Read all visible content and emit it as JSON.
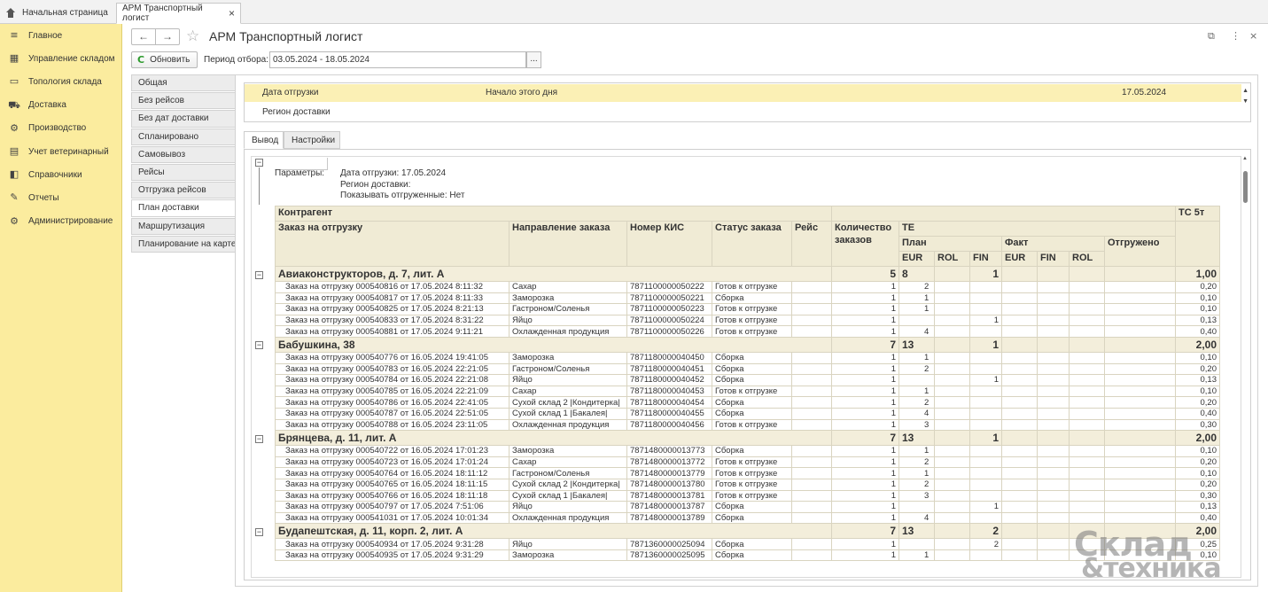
{
  "tabs": {
    "home": "Начальная страница",
    "active": "АРМ Транспортный логист",
    "close": "×"
  },
  "sidebar": [
    {
      "label": "Главное",
      "icon": "≡"
    },
    {
      "label": "Управление складом",
      "icon": "▦"
    },
    {
      "label": "Топология склада",
      "icon": "▭"
    },
    {
      "label": "Доставка",
      "icon": "⛟"
    },
    {
      "label": "Производство",
      "icon": "⚙"
    },
    {
      "label": "Учет ветеринарный",
      "icon": "▤"
    },
    {
      "label": "Справочники",
      "icon": "◧"
    },
    {
      "label": "Отчеты",
      "icon": "✎"
    },
    {
      "label": "Администрирование",
      "icon": "⚙"
    }
  ],
  "header": {
    "back": "←",
    "forward": "→",
    "star": "☆",
    "title": "АРМ Транспортный логист",
    "link": "⧉",
    "more": "⋮",
    "close": "×"
  },
  "toolbar": {
    "refresh_icon": "C",
    "refresh": "Обновить",
    "period_label": "Период отбора:",
    "period_value": "03.05.2024 - 18.05.2024",
    "period_btn": "..."
  },
  "leftnav": [
    "Общая",
    "Без рейсов",
    "Без дат доставки",
    "Спланировано",
    "Самовывоз",
    "Рейсы",
    "Отгрузка рейсов",
    "План доставки",
    "Маршрутизация",
    "Планирование на карте"
  ],
  "filters": [
    {
      "name": "Дата отгрузки",
      "condition": "Начало этого дня",
      "value": "17.05.2024"
    },
    {
      "name": "Регион доставки",
      "condition": "",
      "value": ""
    }
  ],
  "subtabs": [
    "Вывод",
    "Настройки"
  ],
  "params": {
    "label": "Параметры:",
    "lines": [
      "Дата отгрузки: 17.05.2024",
      "Регион доставки:",
      "Показывать отгруженные: Нет"
    ]
  },
  "columns": {
    "contractor": "Контрагент",
    "order": "Заказ на отгрузку",
    "direction": "Направление заказа",
    "kis": "Номер КИС",
    "status": "Статус заказа",
    "trip": "Рейс",
    "count": "Количество заказов",
    "te": "ТЕ",
    "plan": "План",
    "fact": "Факт",
    "shipped": "Отгружено",
    "eur": "EUR",
    "rol": "ROL",
    "fin": "FIN",
    "tc": "ТС 5т"
  },
  "groups": [
    {
      "name": "Авиаконструкторов, д. 7, лит. А",
      "count": "5",
      "eur": "8",
      "fin": "1",
      "tc": "1,00",
      "rows": [
        {
          "order": "Заказ на отгрузку 000540816 от 17.05.2024 8:11:32",
          "dir": "Сахар",
          "kis": "7871100000050222",
          "status": "Готов к отгрузке",
          "count": "1",
          "eur": "2",
          "fin": "",
          "tc": "0,20"
        },
        {
          "order": "Заказ на отгрузку 000540817 от 17.05.2024 8:11:33",
          "dir": "Заморозка",
          "kis": "7871100000050221",
          "status": "Сборка",
          "count": "1",
          "eur": "1",
          "fin": "",
          "tc": "0,10"
        },
        {
          "order": "Заказ на отгрузку 000540825 от 17.05.2024 8:21:13",
          "dir": "Гастроном/Соленья",
          "kis": "7871100000050223",
          "status": "Готов к отгрузке",
          "count": "1",
          "eur": "1",
          "fin": "",
          "tc": "0,10"
        },
        {
          "order": "Заказ на отгрузку 000540833 от 17.05.2024 8:31:22",
          "dir": "Яйцо",
          "kis": "7871100000050224",
          "status": "Готов к отгрузке",
          "count": "1",
          "eur": "",
          "fin": "1",
          "tc": "0,13"
        },
        {
          "order": "Заказ на отгрузку 000540881 от 17.05.2024 9:11:21",
          "dir": "Охлажденная продукция",
          "kis": "7871100000050226",
          "status": "Готов к отгрузке",
          "count": "1",
          "eur": "4",
          "fin": "",
          "tc": "0,40"
        }
      ]
    },
    {
      "name": "Бабушкина, 38",
      "count": "7",
      "eur": "13",
      "fin": "1",
      "tc": "2,00",
      "rows": [
        {
          "order": "Заказ на отгрузку 000540776 от 16.05.2024 19:41:05",
          "dir": "Заморозка",
          "kis": "7871180000040450",
          "status": "Сборка",
          "count": "1",
          "eur": "1",
          "fin": "",
          "tc": "0,10"
        },
        {
          "order": "Заказ на отгрузку 000540783 от 16.05.2024 22:21:05",
          "dir": "Гастроном/Соленья",
          "kis": "7871180000040451",
          "status": "Сборка",
          "count": "1",
          "eur": "2",
          "fin": "",
          "tc": "0,20"
        },
        {
          "order": "Заказ на отгрузку 000540784 от 16.05.2024 22:21:08",
          "dir": "Яйцо",
          "kis": "7871180000040452",
          "status": "Сборка",
          "count": "1",
          "eur": "",
          "fin": "1",
          "tc": "0,13"
        },
        {
          "order": "Заказ на отгрузку 000540785 от 16.05.2024 22:21:09",
          "dir": "Сахар",
          "kis": "7871180000040453",
          "status": "Готов к отгрузке",
          "count": "1",
          "eur": "1",
          "fin": "",
          "tc": "0,10"
        },
        {
          "order": "Заказ на отгрузку 000540786 от 16.05.2024 22:41:05",
          "dir": "Сухой склад 2 |Кондитерка|",
          "kis": "7871180000040454",
          "status": "Сборка",
          "count": "1",
          "eur": "2",
          "fin": "",
          "tc": "0,20"
        },
        {
          "order": "Заказ на отгрузку 000540787 от 16.05.2024 22:51:05",
          "dir": "Сухой склад 1 |Бакалея|",
          "kis": "7871180000040455",
          "status": "Сборка",
          "count": "1",
          "eur": "4",
          "fin": "",
          "tc": "0,40"
        },
        {
          "order": "Заказ на отгрузку 000540788 от 16.05.2024 23:11:05",
          "dir": "Охлажденная продукция",
          "kis": "7871180000040456",
          "status": "Готов к отгрузке",
          "count": "1",
          "eur": "3",
          "fin": "",
          "tc": "0,30"
        }
      ]
    },
    {
      "name": "Брянцева, д. 11, лит. А",
      "count": "7",
      "eur": "13",
      "fin": "1",
      "tc": "2,00",
      "rows": [
        {
          "order": "Заказ на отгрузку 000540722 от 16.05.2024 17:01:23",
          "dir": "Заморозка",
          "kis": "7871480000013773",
          "status": "Сборка",
          "count": "1",
          "eur": "1",
          "fin": "",
          "tc": "0,10"
        },
        {
          "order": "Заказ на отгрузку 000540723 от 16.05.2024 17:01:24",
          "dir": "Сахар",
          "kis": "7871480000013772",
          "status": "Готов к отгрузке",
          "count": "1",
          "eur": "2",
          "fin": "",
          "tc": "0,20"
        },
        {
          "order": "Заказ на отгрузку 000540764 от 16.05.2024 18:11:12",
          "dir": "Гастроном/Соленья",
          "kis": "7871480000013779",
          "status": "Готов к отгрузке",
          "count": "1",
          "eur": "1",
          "fin": "",
          "tc": "0,10"
        },
        {
          "order": "Заказ на отгрузку 000540765 от 16.05.2024 18:11:15",
          "dir": "Сухой склад 2 |Кондитерка|",
          "kis": "7871480000013780",
          "status": "Готов к отгрузке",
          "count": "1",
          "eur": "2",
          "fin": "",
          "tc": "0,20"
        },
        {
          "order": "Заказ на отгрузку 000540766 от 16.05.2024 18:11:18",
          "dir": "Сухой склад 1 |Бакалея|",
          "kis": "7871480000013781",
          "status": "Готов к отгрузке",
          "count": "1",
          "eur": "3",
          "fin": "",
          "tc": "0,30"
        },
        {
          "order": "Заказ на отгрузку 000540797 от 17.05.2024 7:51:06",
          "dir": "Яйцо",
          "kis": "7871480000013787",
          "status": "Сборка",
          "count": "1",
          "eur": "",
          "fin": "1",
          "tc": "0,13"
        },
        {
          "order": "Заказ на отгрузку 000541031 от 17.05.2024 10:01:34",
          "dir": "Охлажденная продукция",
          "kis": "7871480000013789",
          "status": "Сборка",
          "count": "1",
          "eur": "4",
          "fin": "",
          "tc": "0,40"
        }
      ]
    },
    {
      "name": "Будапештская, д. 11, корп. 2, лит. А",
      "count": "7",
      "eur": "13",
      "fin": "2",
      "tc": "2,00",
      "rows": [
        {
          "order": "Заказ на отгрузку 000540934 от 17.05.2024 9:31:28",
          "dir": "Яйцо",
          "kis": "7871360000025094",
          "status": "Сборка",
          "count": "1",
          "eur": "",
          "fin": "2",
          "tc": "0,25"
        },
        {
          "order": "Заказ на отгрузку 000540935 от 17.05.2024 9:31:29",
          "dir": "Заморозка",
          "kis": "7871360000025095",
          "status": "Сборка",
          "count": "1",
          "eur": "1",
          "fin": "",
          "tc": "0,10"
        }
      ]
    }
  ],
  "watermark": {
    "line1": "Склад",
    "line2": "&техника"
  }
}
